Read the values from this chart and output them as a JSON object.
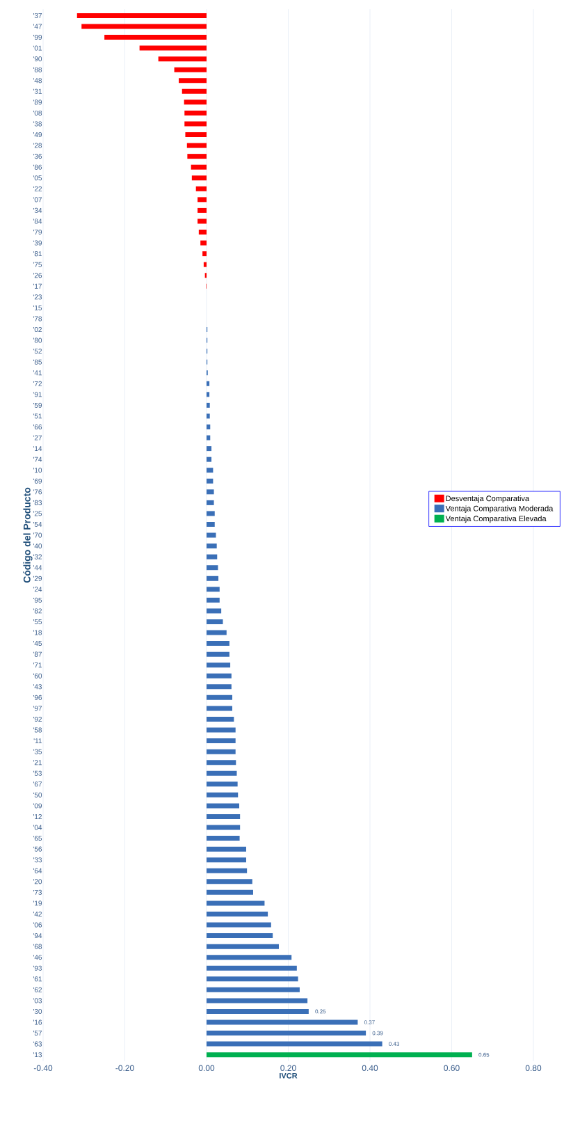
{
  "chart_data": {
    "type": "bar",
    "orientation": "horizontal",
    "xlabel": "IVCR",
    "ylabel": "Código del Producto",
    "categories": [
      "'37",
      "'47",
      "'99",
      "'01",
      "'90",
      "'88",
      "'48",
      "'31",
      "'89",
      "'08",
      "'38",
      "'49",
      "'28",
      "'36",
      "'86",
      "'05",
      "'22",
      "'07",
      "'34",
      "'84",
      "'79",
      "'39",
      "'81",
      "'75",
      "'26",
      "'17",
      "'23",
      "'15",
      "'78",
      "'02",
      "'80",
      "'52",
      "'85",
      "'41",
      "'72",
      "'91",
      "'59",
      "'51",
      "'66",
      "'27",
      "'14",
      "'74",
      "'10",
      "'69",
      "'76",
      "'83",
      "'25",
      "'54",
      "'70",
      "'40",
      "'32",
      "'44",
      "'29",
      "'24",
      "'95",
      "'82",
      "'55",
      "'18",
      "'45",
      "'87",
      "'71",
      "'60",
      "'43",
      "'96",
      "'97",
      "'92",
      "'58",
      "'11",
      "'35",
      "'21",
      "'53",
      "'67",
      "'50",
      "'09",
      "'12",
      "'04",
      "'65",
      "'56",
      "'33",
      "'64",
      "'20",
      "'73",
      "'19",
      "'42",
      "'06",
      "'94",
      "'68",
      "'46",
      "'93",
      "'61",
      "'62",
      "'03",
      "'30",
      "'16",
      "'57",
      "'63",
      "'13"
    ],
    "series": [
      {
        "name": "Desventaja Comparativa",
        "color": "#ff0000",
        "values": [
          -0.317,
          -0.306,
          -0.25,
          -0.164,
          -0.118,
          -0.079,
          -0.068,
          -0.06,
          -0.055,
          -0.054,
          -0.054,
          -0.052,
          -0.048,
          -0.047,
          -0.038,
          -0.036,
          -0.026,
          -0.022,
          -0.022,
          -0.022,
          -0.019,
          -0.015,
          -0.01,
          -0.007,
          -0.004,
          -0.001,
          null,
          null,
          null,
          null,
          null,
          null,
          null,
          null,
          null,
          null,
          null,
          null,
          null,
          null,
          null,
          null,
          null,
          null,
          null,
          null,
          null,
          null,
          null,
          null,
          null,
          null,
          null,
          null,
          null,
          null,
          null,
          null,
          null,
          null,
          null,
          null,
          null,
          null,
          null,
          null,
          null,
          null,
          null,
          null,
          null,
          null,
          null,
          null,
          null,
          null,
          null,
          null,
          null,
          null,
          null,
          null,
          null,
          null,
          null,
          null,
          null,
          null,
          null,
          null,
          null,
          null,
          null,
          null,
          null,
          null,
          null
        ]
      },
      {
        "name": "Ventaja Comparativa Moderada",
        "color": "#3a6fb7",
        "values": [
          null,
          null,
          null,
          null,
          null,
          null,
          null,
          null,
          null,
          null,
          null,
          null,
          null,
          null,
          null,
          null,
          null,
          null,
          null,
          null,
          null,
          null,
          null,
          null,
          null,
          null,
          0.0,
          0.0,
          0.0,
          0.002,
          0.002,
          0.002,
          0.002,
          0.003,
          0.007,
          0.007,
          0.008,
          0.008,
          0.009,
          0.009,
          0.012,
          0.012,
          0.016,
          0.016,
          0.018,
          0.018,
          0.02,
          0.02,
          0.023,
          0.025,
          0.026,
          0.028,
          0.029,
          0.032,
          0.032,
          0.036,
          0.04,
          0.049,
          0.056,
          0.056,
          0.058,
          0.061,
          0.061,
          0.063,
          0.063,
          0.067,
          0.071,
          0.071,
          0.071,
          0.072,
          0.074,
          0.076,
          0.077,
          0.08,
          0.082,
          0.082,
          0.081,
          0.097,
          0.097,
          0.099,
          0.112,
          0.114,
          0.142,
          0.15,
          0.158,
          0.162,
          0.177,
          0.208,
          0.221,
          0.224,
          0.228,
          0.247,
          0.25,
          0.37,
          0.39,
          0.43,
          null
        ],
        "value_labels": [
          null,
          null,
          null,
          null,
          null,
          null,
          null,
          null,
          null,
          null,
          null,
          null,
          null,
          null,
          null,
          null,
          null,
          null,
          null,
          null,
          null,
          null,
          null,
          null,
          null,
          null,
          null,
          null,
          null,
          null,
          null,
          null,
          null,
          null,
          null,
          null,
          null,
          null,
          null,
          null,
          null,
          null,
          null,
          null,
          null,
          null,
          null,
          null,
          null,
          null,
          null,
          null,
          null,
          null,
          null,
          null,
          null,
          null,
          null,
          null,
          null,
          null,
          null,
          null,
          null,
          null,
          null,
          null,
          null,
          null,
          null,
          null,
          null,
          null,
          null,
          null,
          null,
          null,
          null,
          null,
          null,
          null,
          null,
          null,
          null,
          null,
          null,
          null,
          null,
          null,
          null,
          null,
          "0.25",
          "0.37",
          "0.39",
          "0.43",
          null
        ]
      },
      {
        "name": "Ventaja Comparativa Elevada",
        "color": "#00b050",
        "values": [
          null,
          null,
          null,
          null,
          null,
          null,
          null,
          null,
          null,
          null,
          null,
          null,
          null,
          null,
          null,
          null,
          null,
          null,
          null,
          null,
          null,
          null,
          null,
          null,
          null,
          null,
          null,
          null,
          null,
          null,
          null,
          null,
          null,
          null,
          null,
          null,
          null,
          null,
          null,
          null,
          null,
          null,
          null,
          null,
          null,
          null,
          null,
          null,
          null,
          null,
          null,
          null,
          null,
          null,
          null,
          null,
          null,
          null,
          null,
          null,
          null,
          null,
          null,
          null,
          null,
          null,
          null,
          null,
          null,
          null,
          null,
          null,
          null,
          null,
          null,
          null,
          null,
          null,
          null,
          null,
          null,
          null,
          null,
          null,
          null,
          null,
          null,
          null,
          null,
          null,
          null,
          null,
          null,
          null,
          null,
          null,
          0.65
        ],
        "value_labels": [
          null,
          null,
          null,
          null,
          null,
          null,
          null,
          null,
          null,
          null,
          null,
          null,
          null,
          null,
          null,
          null,
          null,
          null,
          null,
          null,
          null,
          null,
          null,
          null,
          null,
          null,
          null,
          null,
          null,
          null,
          null,
          null,
          null,
          null,
          null,
          null,
          null,
          null,
          null,
          null,
          null,
          null,
          null,
          null,
          null,
          null,
          null,
          null,
          null,
          null,
          null,
          null,
          null,
          null,
          null,
          null,
          null,
          null,
          null,
          null,
          null,
          null,
          null,
          null,
          null,
          null,
          null,
          null,
          null,
          null,
          null,
          null,
          null,
          null,
          null,
          null,
          null,
          null,
          null,
          null,
          null,
          null,
          null,
          null,
          null,
          null,
          null,
          null,
          null,
          null,
          null,
          null,
          null,
          null,
          null,
          null,
          "0.65"
        ]
      }
    ],
    "xlim": [
      -0.4,
      0.8
    ],
    "xticks": [
      {
        "value": -0.4,
        "label": "-0.40"
      },
      {
        "value": -0.2,
        "label": "-0.20"
      },
      {
        "value": 0,
        "label": "0.00"
      },
      {
        "value": 0.2,
        "label": "0.20"
      },
      {
        "value": 0.4,
        "label": "0.40"
      },
      {
        "value": 0.6,
        "label": "0.60"
      },
      {
        "value": 0.8,
        "label": "0.80"
      }
    ],
    "grid": "x",
    "legend": "right"
  }
}
